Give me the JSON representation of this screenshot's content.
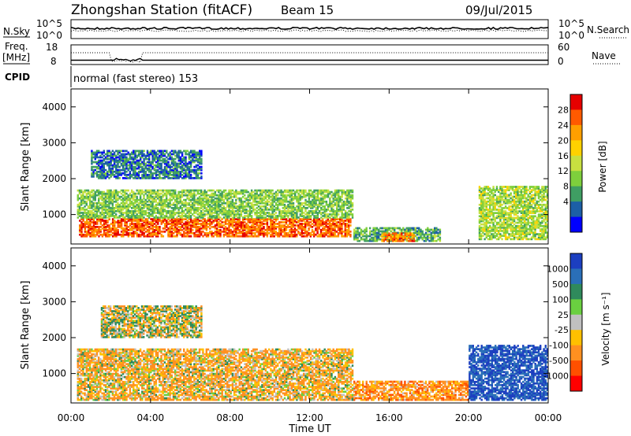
{
  "header": {
    "station": "Zhongshan Station (fitACF)",
    "beam": "Beam 15",
    "date": "09/Jul/2015"
  },
  "noise_panel": {
    "left_label": "N.Sky",
    "left_ticks": [
      "10^5",
      "10^0"
    ],
    "right_ticks": [
      "10^5",
      "10^0"
    ],
    "right_label": "N.Search"
  },
  "freq_panel": {
    "left_label_1": "Freq.",
    "left_label_2": "[MHz]",
    "left_ticks": [
      "18",
      "8"
    ],
    "right_ticks": [
      "60",
      "0"
    ],
    "right_label": "Nave"
  },
  "cpid": {
    "label": "CPID",
    "value": "normal (fast stereo) 153"
  },
  "chart_data": [
    {
      "type": "heatmap",
      "panel": "power",
      "ylabel": "Slant Range [km]",
      "yticks": [
        "1000",
        "2000",
        "3000",
        "4000"
      ],
      "ylim": [
        180,
        4500
      ],
      "xlim": [
        0,
        24
      ],
      "colorbar_label": "Power [dB]",
      "colorbar_ticks": [
        "28",
        "24",
        "20",
        "16",
        "12",
        "8",
        "4"
      ],
      "colorbar_colors": [
        "#e60000",
        "#ff5a00",
        "#ff9f00",
        "#ffd200",
        "#c8e040",
        "#7ecf3c",
        "#3f9e63",
        "#1c5fa6",
        "#0000ff"
      ],
      "regions": [
        {
          "t0": 0.4,
          "t1": 14.1,
          "r0": 380,
          "r1": 900,
          "level": 26
        },
        {
          "t0": 0.3,
          "t1": 14.2,
          "r0": 900,
          "r1": 1700,
          "level": 12
        },
        {
          "t0": 1.0,
          "t1": 6.6,
          "r0": 2000,
          "r1": 2800,
          "level": 6
        },
        {
          "t0": 14.2,
          "t1": 18.6,
          "r0": 250,
          "r1": 650,
          "level": 10
        },
        {
          "t0": 15.6,
          "t1": 17.3,
          "r0": 250,
          "r1": 500,
          "level": 24
        },
        {
          "t0": 20.5,
          "t1": 24.0,
          "r0": 300,
          "r1": 1800,
          "level": 14
        }
      ]
    },
    {
      "type": "heatmap",
      "panel": "velocity",
      "ylabel": "Slant Range [km]",
      "yticks": [
        "1000",
        "2000",
        "3000",
        "4000"
      ],
      "ylim": [
        180,
        4500
      ],
      "xlim": [
        0,
        24
      ],
      "colorbar_label": "Velocity [m s⁻¹]",
      "colorbar_ticks": [
        "1000",
        "500",
        "100",
        "25",
        "-25",
        "-100",
        "-500",
        "-1000"
      ],
      "colorbar_colors": [
        "#1c3fc0",
        "#2a6fb8",
        "#2f8a5c",
        "#6ad040",
        "#c0c0c0",
        "#ffc000",
        "#ff9020",
        "#ff5000",
        "#ff0000"
      ],
      "regions": [
        {
          "t0": 0.3,
          "t1": 14.2,
          "r0": 250,
          "r1": 1700,
          "level": -100
        },
        {
          "t0": 1.5,
          "t1": 6.6,
          "r0": 2000,
          "r1": 2900,
          "level": 0
        },
        {
          "t0": 14.2,
          "t1": 20.0,
          "r0": 250,
          "r1": 800,
          "level": -200
        },
        {
          "t0": 20.0,
          "t1": 24.0,
          "r0": 250,
          "r1": 1800,
          "level": 700
        }
      ]
    }
  ],
  "xaxis": {
    "ticks": [
      "00:00",
      "04:00",
      "08:00",
      "12:00",
      "16:00",
      "20:00",
      "00:00"
    ],
    "label": "Time UT"
  }
}
